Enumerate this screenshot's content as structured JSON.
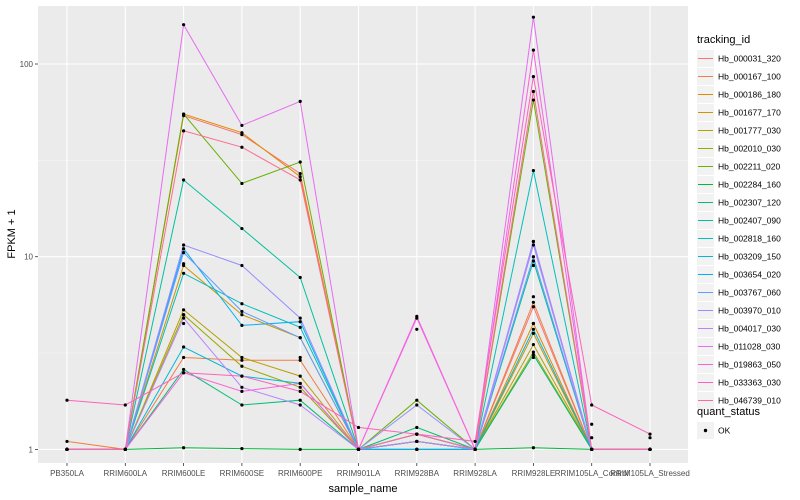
{
  "chart_data": {
    "type": "line",
    "title": "",
    "xlabel": "sample_name",
    "ylabel": "FPKM + 1",
    "y_scale": "log10",
    "ylim": [
      0.85,
      200
    ],
    "y_ticks": [
      1,
      10,
      100
    ],
    "y_tick_labels": [
      "1",
      "10",
      "100"
    ],
    "grid": true,
    "legend_placement": "right",
    "categories": [
      "PB350LA",
      "RRIM600LA",
      "RRIM600LE",
      "RRIM600SE",
      "RRIM600PE",
      "RRIM901LA",
      "RRIM928BA",
      "RRIM928LA",
      "RRIM928LE",
      "RRIM105LA_Control",
      "RRIM105LA_Stressed"
    ],
    "legend_title": "tracking_id",
    "series": [
      {
        "name": "Hb_000031_320",
        "color": "#f8766d",
        "values": [
          1.0,
          1.0,
          54,
          43,
          27,
          1.0,
          1.1,
          1.0,
          5.5,
          1.0,
          1.0
        ]
      },
      {
        "name": "Hb_000167_100",
        "color": "#ef7f45",
        "values": [
          1.1,
          1.0,
          3.0,
          2.9,
          2.9,
          1.0,
          1.0,
          1.0,
          5.8,
          1.0,
          1.0
        ]
      },
      {
        "name": "Hb_000186_180",
        "color": "#e18a00",
        "values": [
          1.0,
          1.0,
          55,
          44,
          26,
          1.0,
          1.1,
          1.0,
          4.5,
          1.0,
          1.0
        ]
      },
      {
        "name": "Hb_001677_170",
        "color": "#cf9400",
        "values": [
          1.0,
          1.0,
          9.0,
          5.0,
          3.8,
          1.0,
          1.2,
          1.0,
          4.0,
          1.0,
          1.0
        ]
      },
      {
        "name": "Hb_001777_030",
        "color": "#b79f00",
        "values": [
          1.0,
          1.0,
          5.3,
          3.0,
          2.4,
          1.0,
          1.1,
          1.0,
          3.5,
          1.0,
          1.0
        ]
      },
      {
        "name": "Hb_002010_030",
        "color": "#98a900",
        "values": [
          1.0,
          1.0,
          5.0,
          2.7,
          2.1,
          1.0,
          1.1,
          1.0,
          3.2,
          1.0,
          1.0
        ]
      },
      {
        "name": "Hb_002211_020",
        "color": "#6ab100",
        "values": [
          1.0,
          1.0,
          55,
          24,
          31,
          1.0,
          1.8,
          1.0,
          65,
          1.0,
          1.0
        ]
      },
      {
        "name": "Hb_002284_160",
        "color": "#00ba38",
        "values": [
          1.0,
          1.0,
          1.02,
          1.01,
          1.0,
          1.0,
          1.0,
          1.0,
          1.02,
          1.0,
          1.0
        ]
      },
      {
        "name": "Hb_002307_120",
        "color": "#00bf74",
        "values": [
          1.0,
          1.0,
          2.6,
          1.7,
          1.8,
          1.0,
          1.3,
          1.0,
          3.1,
          1.0,
          1.0
        ]
      },
      {
        "name": "Hb_002407_090",
        "color": "#00c19c",
        "values": [
          1.0,
          1.0,
          25,
          14,
          7.8,
          1.0,
          1.2,
          1.0,
          9.5,
          1.0,
          1.0
        ]
      },
      {
        "name": "Hb_002818_160",
        "color": "#00c0bc",
        "values": [
          1.0,
          1.0,
          8.2,
          5.7,
          4.3,
          1.0,
          1.1,
          1.0,
          28,
          1.0,
          1.0
        ]
      },
      {
        "name": "Hb_003209_150",
        "color": "#00b9d8",
        "values": [
          1.0,
          1.0,
          3.4,
          2.4,
          2.2,
          1.0,
          1.0,
          1.0,
          4.2,
          1.0,
          1.0
        ]
      },
      {
        "name": "Hb_003654_020",
        "color": "#00b0f6",
        "values": [
          1.0,
          1.0,
          11,
          4.4,
          4.6,
          1.0,
          1.0,
          1.0,
          12,
          1.0,
          1.0
        ]
      },
      {
        "name": "Hb_003767_060",
        "color": "#619cff",
        "values": [
          1.0,
          1.0,
          10.5,
          5.2,
          3.8,
          1.0,
          1.2,
          1.0,
          10,
          1.0,
          1.0
        ]
      },
      {
        "name": "Hb_003970_010",
        "color": "#9590ff",
        "values": [
          1.0,
          1.0,
          11.5,
          9.0,
          4.8,
          1.0,
          1.7,
          1.0,
          11.5,
          1.0,
          1.0
        ]
      },
      {
        "name": "Hb_004017_030",
        "color": "#b983ff",
        "values": [
          1.0,
          1.0,
          4.8,
          2.1,
          1.7,
          1.0,
          1.1,
          1.0,
          12,
          1.0,
          1.0
        ]
      },
      {
        "name": "Hb_011028_030",
        "color": "#e76bf3",
        "values": [
          1.0,
          1.0,
          160,
          48,
          64,
          1.0,
          4.8,
          1.0,
          175,
          1.0,
          1.0
        ]
      },
      {
        "name": "Hb_019863_050",
        "color": "#fa62db",
        "values": [
          1.0,
          1.0,
          2.5,
          2.0,
          2.2,
          1.0,
          4.9,
          1.0,
          118,
          1.0,
          1.0
        ]
      },
      {
        "name": "Hb_033363_030",
        "color": "#ff62bc",
        "values": [
          1.8,
          1.7,
          2.5,
          2.4,
          2.0,
          1.3,
          1.2,
          1.1,
          86,
          1.7,
          1.2
        ]
      },
      {
        "name": "Hb_046739_010",
        "color": "#ff6c91",
        "values": [
          1.0,
          1.0,
          45,
          37,
          25,
          1.0,
          1.2,
          1.0,
          72,
          1.0,
          1.0
        ]
      }
    ],
    "extra_points": [
      {
        "category": "RRIM928LE",
        "value": 4.5
      },
      {
        "category": "RRIM928LE",
        "value": 6.2
      },
      {
        "category": "RRIM928LE",
        "value": 9.0
      },
      {
        "category": "RRIM928LE",
        "value": 3.0
      },
      {
        "category": "RRIM600LE",
        "value": 4.5
      },
      {
        "category": "RRIM600LE",
        "value": 5.0
      },
      {
        "category": "RRIM600LE",
        "value": 9.2
      },
      {
        "category": "RRIM600PE",
        "value": 3.0
      },
      {
        "category": "RRIM928BA",
        "value": 4.2
      },
      {
        "category": "RRIM105LA_Control",
        "value": 1.35
      },
      {
        "category": "RRIM105LA_Control",
        "value": 1.15
      },
      {
        "category": "RRIM105LA_Stressed",
        "value": 1.15
      }
    ],
    "legend2_title": "quant_status",
    "legend2_entries": [
      {
        "label": "OK",
        "marker": "point",
        "color": "#000000"
      }
    ]
  }
}
